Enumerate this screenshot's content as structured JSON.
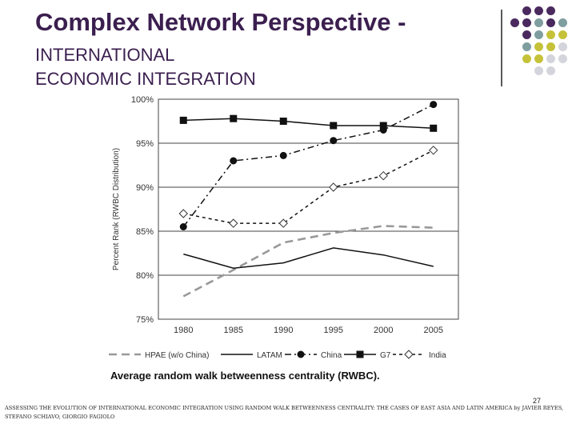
{
  "slide": {
    "title": "Complex Network Perspective -",
    "subtitle_line1": "INTERNATIONAL",
    "subtitle_line2": "ECONOMIC INTEGRATION",
    "caption": "Average random walk betweenness centrality (RWBC).",
    "page_number": "27",
    "citation": "ASSESSING THE EVOLUTION OF INTERNATIONAL ECONOMIC INTEGRATION USING RANDOM WALK BETWEENNESS CENTRALITY: THE CASES OF EAST ASIA AND LATIN AMERICA by JAVIER REYES, STEFANO SCHIAVO, GIORGIO FAGIOLO"
  },
  "colors": {
    "title": "#3b1f4f",
    "dot_purple": "#4a2a5e",
    "dot_teal": "#7f9ea0",
    "dot_olive": "#c5c23a",
    "dot_grey": "#d4d4dc"
  },
  "chart_data": {
    "type": "line",
    "x": [
      1980,
      1985,
      1990,
      1995,
      2000,
      2005
    ],
    "xticks": [
      "1980",
      "1985",
      "1990",
      "1995",
      "2000",
      "2005"
    ],
    "ylim": [
      75,
      100
    ],
    "yticks": [
      "75%",
      "80%",
      "85%",
      "90%",
      "95%",
      "100%"
    ],
    "ylabel": "Percent Rank (RWBC Distribution)",
    "xlabel": "",
    "grid": "horizontal",
    "legend_position": "bottom",
    "series": [
      {
        "name": "HPAE (w/o China)",
        "values": [
          77.6,
          80.6,
          83.7,
          84.8,
          85.6,
          85.4
        ],
        "style": "longdash",
        "color": "#999999",
        "marker": "none"
      },
      {
        "name": "LATAM",
        "values": [
          82.4,
          80.8,
          81.4,
          83.1,
          82.3,
          81.0
        ],
        "style": "solid",
        "color": "#111111",
        "marker": "none"
      },
      {
        "name": "China",
        "values": [
          85.5,
          93.0,
          93.6,
          95.3,
          96.5,
          99.4
        ],
        "style": "dashdot",
        "color": "#111111",
        "marker": "circle"
      },
      {
        "name": "G7",
        "values": [
          97.6,
          97.8,
          97.5,
          97.0,
          97.0,
          96.7
        ],
        "style": "solid",
        "color": "#111111",
        "marker": "square"
      },
      {
        "name": "India",
        "values": [
          87.0,
          85.9,
          85.9,
          90.0,
          91.3,
          94.2
        ],
        "style": "shortdash",
        "color": "#111111",
        "marker": "diamond"
      }
    ]
  }
}
